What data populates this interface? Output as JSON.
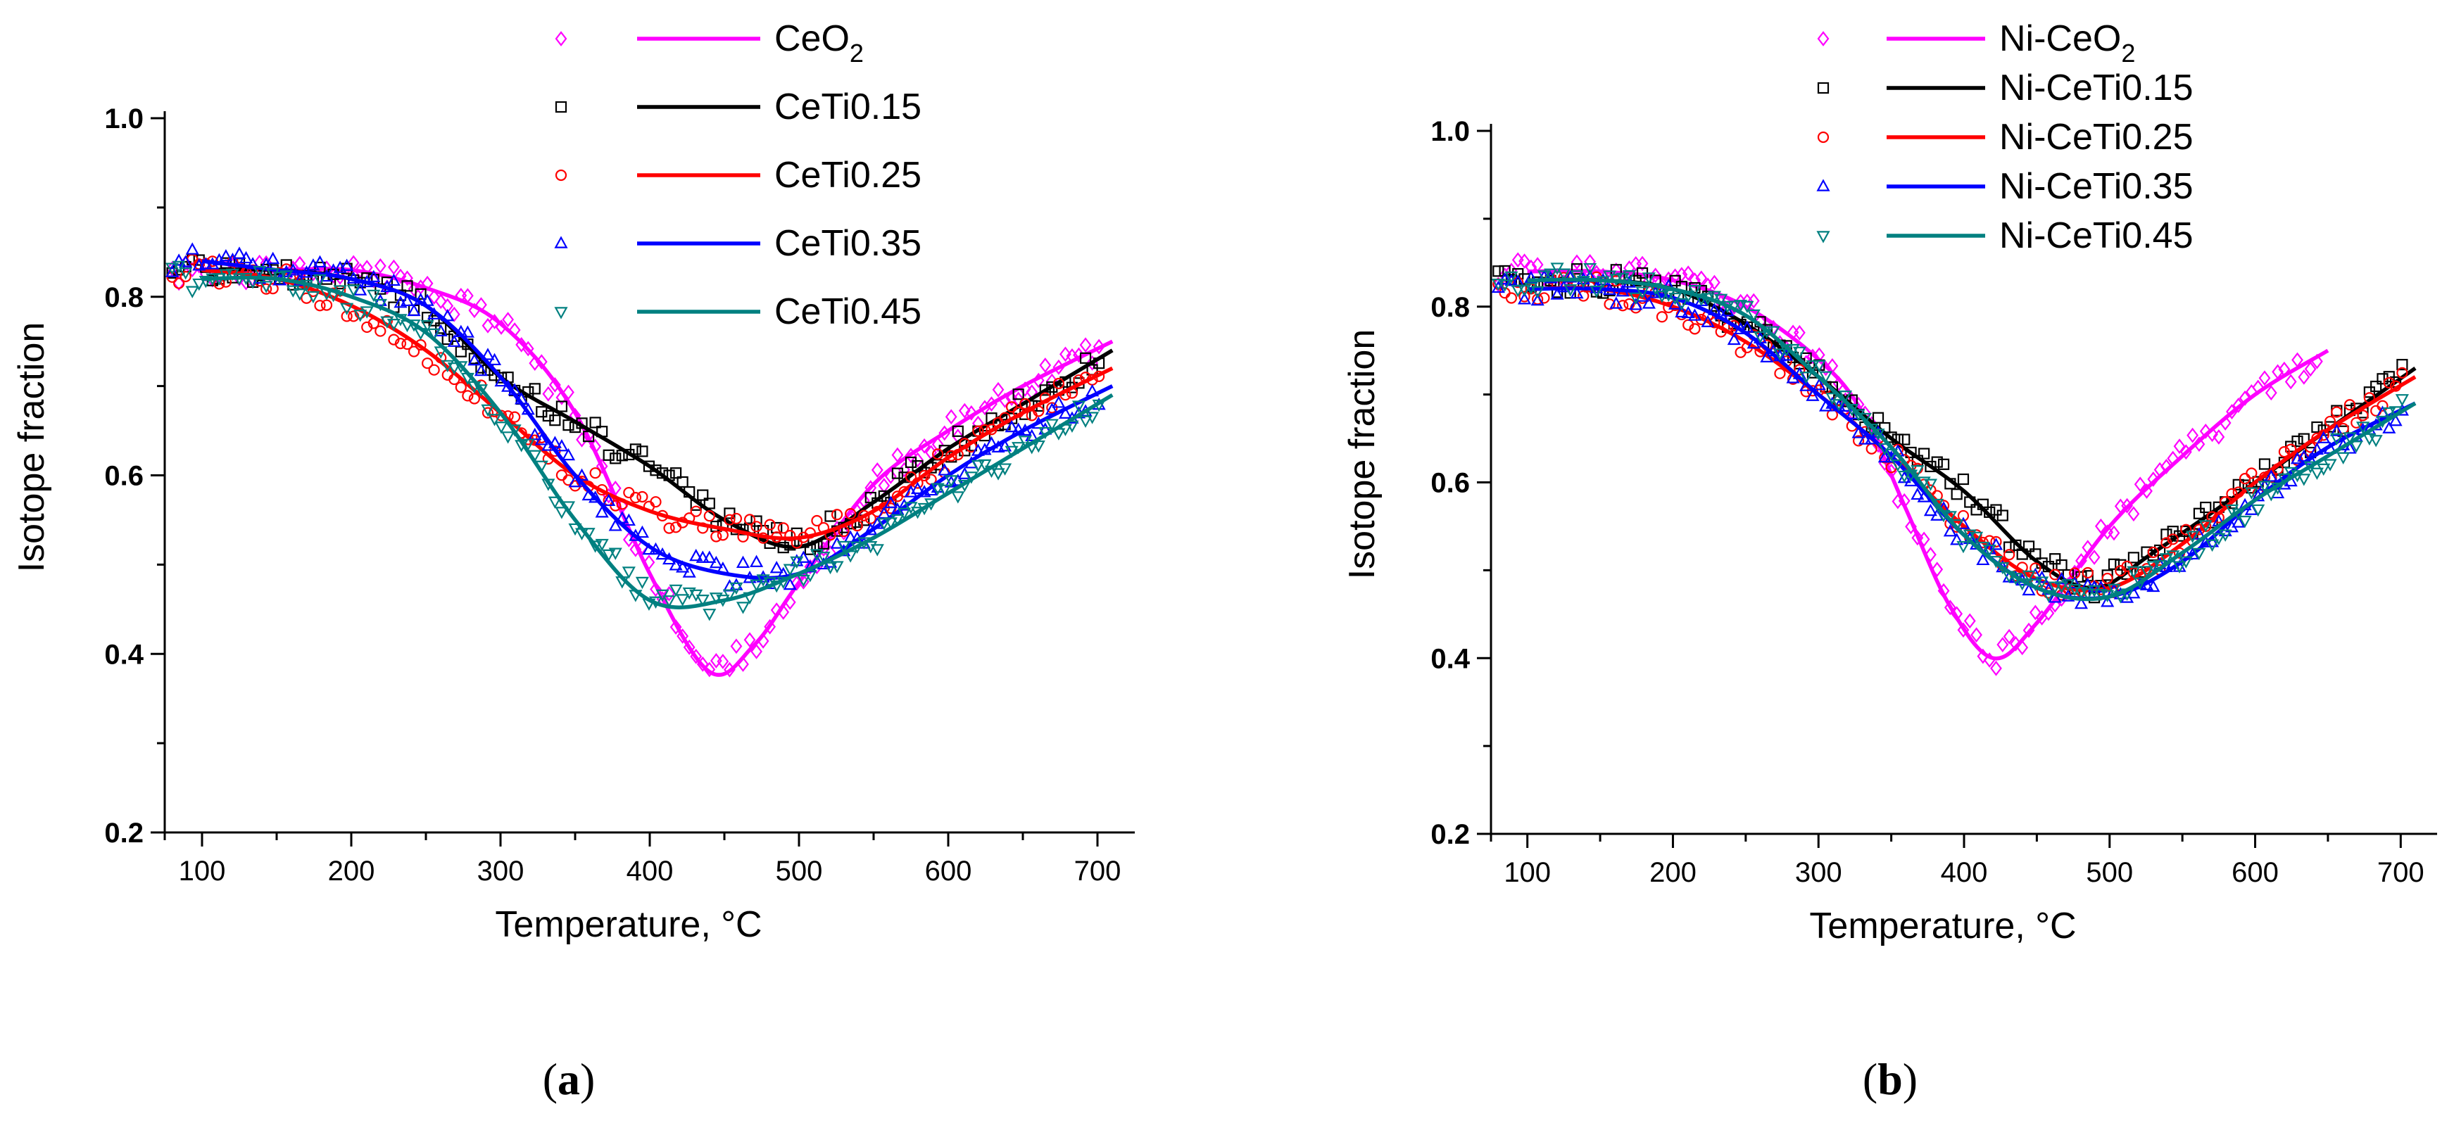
{
  "colors": {
    "CeO2": "#ff00ff",
    "CeTi0.15": "#000000",
    "CeTi0.25": "#ff0000",
    "CeTi0.35": "#0000ff",
    "CeTi0.45": "#008080"
  },
  "chart_data": [
    {
      "type": "scatter",
      "panel_label": {
        "open": "(",
        "letter": "a",
        "close": ")"
      },
      "xlabel": "Temperature, ",
      "xlabel_unit": "°C",
      "ylabel": "Isotope fraction",
      "xlim": [
        75,
        725
      ],
      "ylim": [
        0.2,
        1.0
      ],
      "x_ticks": [
        100,
        200,
        300,
        400,
        500,
        600,
        700
      ],
      "x_tick_labels": [
        "100",
        "200",
        "300",
        "400",
        "500",
        "600",
        "700"
      ],
      "y_ticks": [
        0.2,
        0.4,
        0.6,
        0.8,
        1.0
      ],
      "y_tick_labels": [
        "0.2",
        "0.4",
        "0.6",
        "0.8",
        "1.0"
      ],
      "legend_position": "top-right",
      "series": [
        {
          "name": "CeO2",
          "label_main": "CeO",
          "label_sub": "2",
          "color_key": "CeO2",
          "marker": "diamond",
          "x": [
            100,
            150,
            200,
            250,
            300,
            350,
            400,
            440,
            470,
            500,
            550,
            600,
            650,
            710
          ],
          "y": [
            0.83,
            0.83,
            0.83,
            0.81,
            0.77,
            0.67,
            0.49,
            0.38,
            0.41,
            0.48,
            0.59,
            0.65,
            0.7,
            0.75
          ]
        },
        {
          "name": "CeTi0.15",
          "label_main": "CeTi0.15",
          "label_sub": "",
          "color_key": "CeTi0.15",
          "marker": "square",
          "x": [
            100,
            150,
            200,
            250,
            300,
            350,
            400,
            450,
            500,
            550,
            600,
            650,
            710
          ],
          "y": [
            0.83,
            0.83,
            0.82,
            0.79,
            0.71,
            0.66,
            0.61,
            0.55,
            0.52,
            0.57,
            0.63,
            0.68,
            0.74
          ]
        },
        {
          "name": "CeTi0.25",
          "label_main": "CeTi0.25",
          "label_sub": "",
          "color_key": "CeTi0.25",
          "marker": "circle",
          "x": [
            100,
            150,
            200,
            250,
            300,
            350,
            400,
            450,
            500,
            550,
            600,
            650,
            710
          ],
          "y": [
            0.83,
            0.82,
            0.79,
            0.74,
            0.67,
            0.6,
            0.56,
            0.54,
            0.53,
            0.56,
            0.62,
            0.67,
            0.72
          ]
        },
        {
          "name": "CeTi0.35",
          "label_main": "CeTi0.35",
          "label_sub": "",
          "color_key": "CeTi0.35",
          "marker": "triangle-up",
          "x": [
            100,
            150,
            200,
            250,
            300,
            350,
            400,
            450,
            500,
            550,
            600,
            650,
            710
          ],
          "y": [
            0.84,
            0.83,
            0.82,
            0.79,
            0.71,
            0.6,
            0.52,
            0.49,
            0.49,
            0.54,
            0.6,
            0.65,
            0.7
          ]
        },
        {
          "name": "CeTi0.45",
          "label_main": "CeTi0.45",
          "label_sub": "",
          "color_key": "CeTi0.45",
          "marker": "triangle-down",
          "x": [
            100,
            150,
            200,
            250,
            300,
            350,
            400,
            450,
            500,
            550,
            600,
            650,
            710
          ],
          "y": [
            0.82,
            0.82,
            0.8,
            0.76,
            0.67,
            0.55,
            0.46,
            0.46,
            0.49,
            0.53,
            0.58,
            0.63,
            0.69
          ]
        }
      ]
    },
    {
      "type": "scatter",
      "panel_label": {
        "open": "(",
        "letter": "b",
        "close": ")"
      },
      "xlabel": "Temperature, ",
      "xlabel_unit": "°C",
      "ylabel": "Isotope fraction",
      "xlim": [
        75,
        725
      ],
      "ylim": [
        0.2,
        1.0
      ],
      "x_ticks": [
        100,
        200,
        300,
        400,
        500,
        600,
        700
      ],
      "x_tick_labels": [
        "100",
        "200",
        "300",
        "400",
        "500",
        "600",
        "700"
      ],
      "y_ticks": [
        0.2,
        0.4,
        0.6,
        0.8,
        1.0
      ],
      "y_tick_labels": [
        "0.2",
        "0.4",
        "0.6",
        "0.8",
        "1.0"
      ],
      "legend_position": "top-right",
      "series": [
        {
          "name": "Ni-CeO2",
          "label_main": "Ni-CeO",
          "label_sub": "2",
          "color_key": "CeO2",
          "marker": "diamond",
          "x": [
            100,
            150,
            200,
            250,
            300,
            330,
            360,
            390,
            420,
            450,
            500,
            550,
            600,
            650
          ],
          "y": [
            0.84,
            0.84,
            0.83,
            0.8,
            0.74,
            0.68,
            0.57,
            0.46,
            0.4,
            0.44,
            0.55,
            0.63,
            0.7,
            0.75
          ]
        },
        {
          "name": "Ni-CeTi0.15",
          "label_main": "Ni-CeTi0.15",
          "label_sub": "",
          "color_key": "CeTi0.15",
          "marker": "square",
          "x": [
            100,
            150,
            200,
            250,
            300,
            350,
            400,
            450,
            490,
            530,
            600,
            650,
            710
          ],
          "y": [
            0.83,
            0.83,
            0.82,
            0.78,
            0.72,
            0.65,
            0.59,
            0.51,
            0.48,
            0.52,
            0.6,
            0.66,
            0.73
          ]
        },
        {
          "name": "Ni-CeTi0.25",
          "label_main": "Ni-CeTi0.25",
          "label_sub": "",
          "color_key": "CeTi0.25",
          "marker": "circle",
          "x": [
            100,
            150,
            200,
            250,
            300,
            350,
            400,
            450,
            500,
            550,
            600,
            650,
            710
          ],
          "y": [
            0.82,
            0.82,
            0.8,
            0.76,
            0.7,
            0.63,
            0.55,
            0.49,
            0.48,
            0.53,
            0.6,
            0.66,
            0.72
          ]
        },
        {
          "name": "Ni-CeTi0.35",
          "label_main": "Ni-CeTi0.35",
          "label_sub": "",
          "color_key": "CeTi0.35",
          "marker": "triangle-up",
          "x": [
            100,
            150,
            200,
            250,
            300,
            350,
            400,
            450,
            500,
            550,
            600,
            650,
            710
          ],
          "y": [
            0.82,
            0.82,
            0.81,
            0.77,
            0.7,
            0.63,
            0.54,
            0.48,
            0.47,
            0.51,
            0.58,
            0.64,
            0.69
          ]
        },
        {
          "name": "Ni-CeTi0.45",
          "label_main": "Ni-CeTi0.45",
          "label_sub": "",
          "color_key": "CeTi0.45",
          "marker": "triangle-down",
          "x": [
            100,
            150,
            200,
            250,
            300,
            350,
            400,
            450,
            500,
            550,
            600,
            650,
            710
          ],
          "y": [
            0.83,
            0.83,
            0.82,
            0.79,
            0.72,
            0.64,
            0.54,
            0.48,
            0.47,
            0.52,
            0.58,
            0.63,
            0.69
          ]
        }
      ]
    }
  ]
}
